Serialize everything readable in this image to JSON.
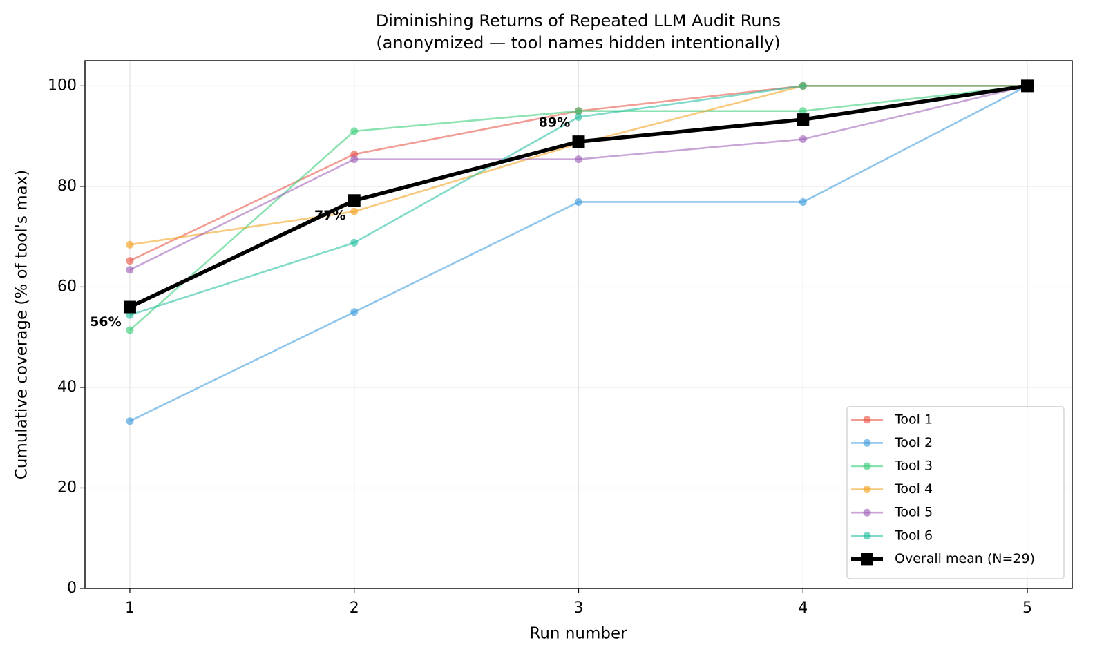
{
  "chart_data": {
    "type": "line",
    "title": "Diminishing Returns of Repeated LLM Audit Runs",
    "subtitle": "(anonymized — tool names hidden intentionally)",
    "x_label": "Run number",
    "y_label": "Cumulative coverage (% of tool's max)",
    "x": [
      1,
      2,
      3,
      4,
      5
    ],
    "xlim": [
      0.8,
      5.2
    ],
    "xticks": [
      1,
      2,
      3,
      4,
      5
    ],
    "ylim": [
      0,
      105
    ],
    "yticks": [
      0,
      20,
      40,
      60,
      80,
      100
    ],
    "grid": true,
    "legend": "lower right",
    "series": [
      {
        "name": "Tool 1",
        "color": "#e74c3c",
        "values": [
          65.2,
          86.4,
          95,
          100,
          100
        ]
      },
      {
        "name": "Tool 2",
        "color": "#3498db",
        "values": [
          33.3,
          55,
          76.9,
          76.9,
          100
        ]
      },
      {
        "name": "Tool 3",
        "color": "#2ecc71",
        "values": [
          51.4,
          91,
          95,
          95,
          100
        ]
      },
      {
        "name": "Tool 4",
        "color": "#f39c12",
        "values": [
          68.4,
          75,
          88.5,
          100,
          100
        ]
      },
      {
        "name": "Tool 5",
        "color": "#9b59b6",
        "values": [
          63.4,
          85.4,
          85.4,
          89.4,
          100
        ]
      },
      {
        "name": "Tool 6",
        "color": "#1abc9c",
        "values": [
          54.4,
          68.8,
          93.8,
          100,
          100
        ]
      },
      {
        "name": "Overall mean (N=29)",
        "color": "#000000",
        "values": [
          56,
          77.2,
          88.9,
          93.3,
          100
        ],
        "value_labels": [
          "56%",
          "77%",
          "89%",
          null,
          null
        ]
      }
    ]
  }
}
